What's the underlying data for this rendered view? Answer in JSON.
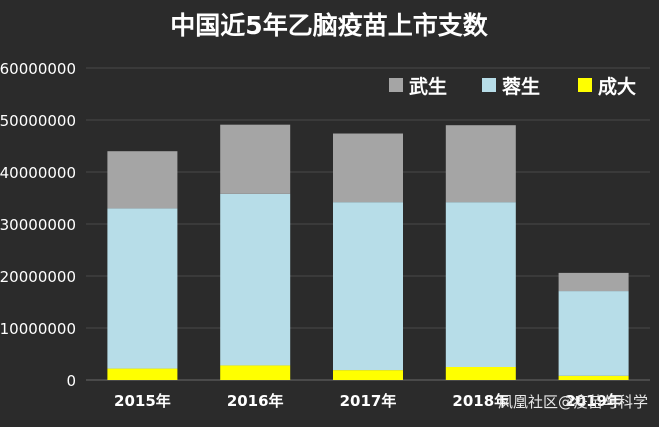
{
  "chart_data": {
    "type": "bar",
    "stacked": true,
    "title": "中国近5年乙脑疫苗上市支数",
    "categories": [
      "2015年",
      "2016年",
      "2017年",
      "2018年",
      "2019年"
    ],
    "series": [
      {
        "name": "成大",
        "color": "#ffff00",
        "values": [
          2200000,
          2800000,
          1900000,
          2500000,
          800000
        ]
      },
      {
        "name": "蓉生",
        "color": "#b7dde8",
        "values": [
          30800000,
          33000000,
          32300000,
          31700000,
          16300000
        ]
      },
      {
        "name": "武生",
        "color": "#a5a5a5",
        "values": [
          11000000,
          13300000,
          13200000,
          14800000,
          3500000
        ]
      }
    ],
    "legend_order": [
      "武生",
      "蓉生",
      "成大"
    ],
    "legend_position": "top-right",
    "yticks": [
      0,
      10000000,
      20000000,
      30000000,
      40000000,
      50000000,
      60000000
    ],
    "ylim": [
      0,
      60000000
    ],
    "xlabel": "",
    "ylabel": "",
    "gridlines": true
  },
  "watermark": "凤凰社区@疫苗与科学"
}
